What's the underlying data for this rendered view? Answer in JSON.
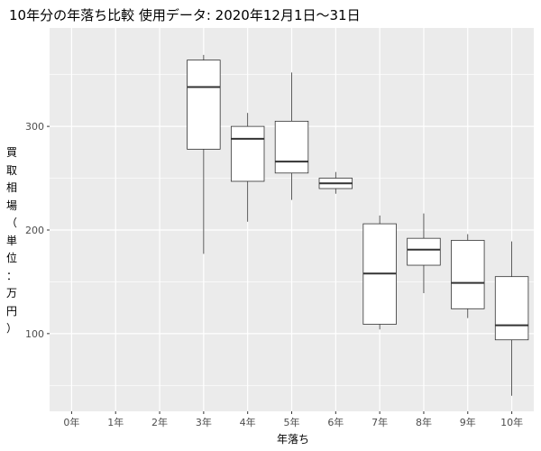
{
  "chart_data": {
    "type": "boxplot",
    "title": "10年分の年落ち比較 使用データ: 2020年12月1日〜31日",
    "xlabel": "年落ち",
    "ylabel": "買取相場（単位：万円）",
    "ylim": [
      25,
      395
    ],
    "yticks": [
      100,
      200,
      300
    ],
    "grid": true,
    "categories": [
      "0年",
      "1年",
      "2年",
      "3年",
      "4年",
      "5年",
      "6年",
      "7年",
      "8年",
      "9年",
      "10年"
    ],
    "boxes": [
      null,
      null,
      null,
      {
        "min": 177,
        "q1": 278,
        "median": 338,
        "q3": 364,
        "max": 369
      },
      {
        "min": 208,
        "q1": 247,
        "median": 288,
        "q3": 300,
        "max": 313
      },
      {
        "min": 229,
        "q1": 255,
        "median": 266,
        "q3": 305,
        "max": 352
      },
      {
        "min": 235,
        "q1": 240,
        "median": 245,
        "q3": 250,
        "max": 256
      },
      {
        "min": 104,
        "q1": 109,
        "median": 158,
        "q3": 206,
        "max": 214
      },
      {
        "min": 139,
        "q1": 166,
        "median": 181,
        "q3": 192,
        "max": 216
      },
      {
        "min": 115,
        "q1": 124,
        "median": 149,
        "q3": 190,
        "max": 196
      },
      {
        "min": 40,
        "q1": 94,
        "median": 108,
        "q3": 155,
        "max": 189
      }
    ]
  }
}
